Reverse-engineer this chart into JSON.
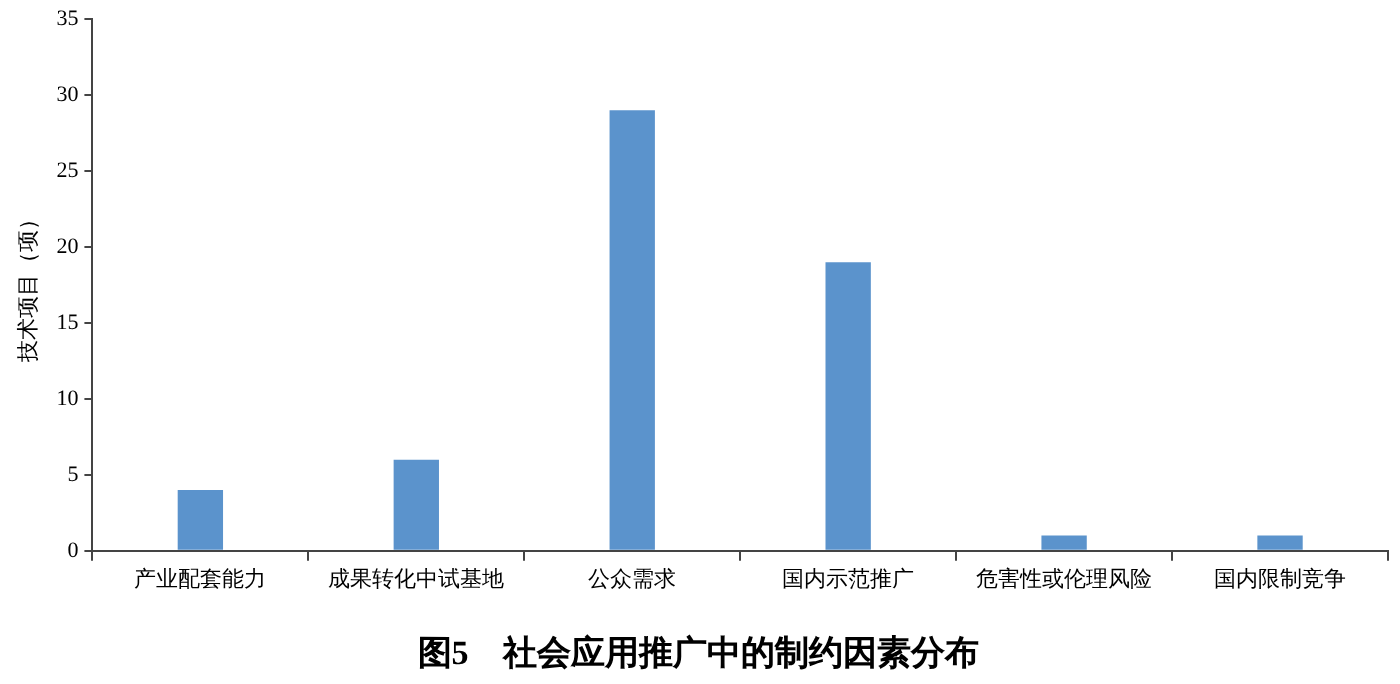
{
  "chart_data": {
    "type": "bar",
    "title": "图5　社会应用推广中的制约因素分布",
    "ylabel": "技术项目（项）",
    "categories": [
      "产业配套能力",
      "成果转化中试基地",
      "公众需求",
      "国内示范推广",
      "危害性或伦理风险",
      "国内限制竞争"
    ],
    "values": [
      4,
      6,
      29,
      19,
      1,
      1
    ],
    "color": "#5b93cc",
    "ylim": [
      0,
      35
    ],
    "yticks": [
      0,
      5,
      10,
      15,
      20,
      25,
      30,
      35
    ],
    "grid": false
  }
}
